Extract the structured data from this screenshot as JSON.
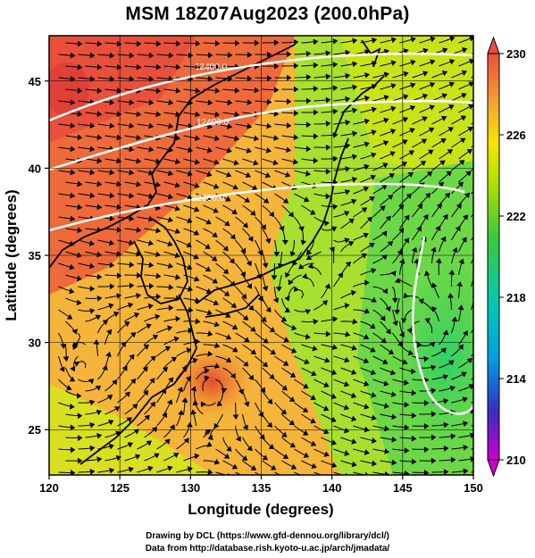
{
  "title": "MSM 18Z07Aug2023 (200.0hPa)",
  "map": {
    "xlabel": "Longitude (degrees)",
    "ylabel": "Latitude  (degrees)",
    "lon_ticks": [
      "120",
      "125",
      "130",
      "135",
      "140",
      "145",
      "150"
    ],
    "lat_ticks": [
      "45",
      "40",
      "35",
      "30",
      "25"
    ],
    "lon_range": [
      120,
      150
    ],
    "lat_range": [
      22.4,
      47.6
    ],
    "contour_labels": [
      "12400.0",
      "12400.0",
      "12300.0"
    ]
  },
  "colorbar": {
    "ticks": [
      "230",
      "226",
      "222",
      "218",
      "214",
      "210"
    ],
    "range": [
      210,
      230
    ],
    "colors": [
      "#cc00cc",
      "#3a2cc4",
      "#00a0e0",
      "#00c8b4",
      "#3cc83c",
      "#aee000",
      "#f5e600",
      "#f5a032",
      "#e8503c"
    ]
  },
  "credits": {
    "line1": "Drawing by DCL (https://www.gfd-dennou.org/library/dcl/)",
    "line2": "Data from http://database.rish.kyoto-u.ac.jp/arch/jmadata/"
  }
}
